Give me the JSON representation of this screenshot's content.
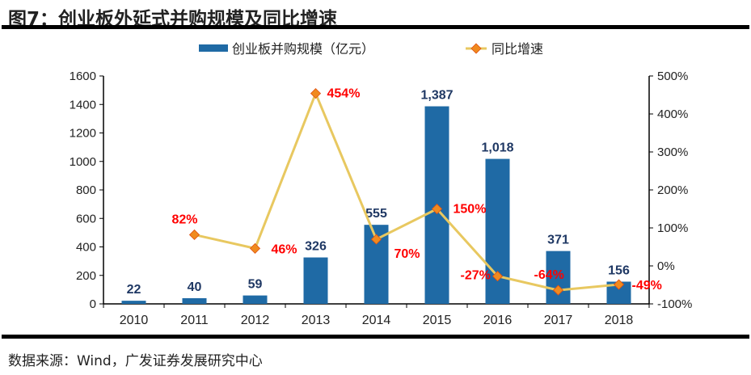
{
  "title": "图7：创业板外延式并购规模及同比增速",
  "source": "数据来源：Wind，广发证券发展研究中心",
  "chart_data": {
    "type": "bar+line",
    "categories": [
      "2010",
      "2011",
      "2012",
      "2013",
      "2014",
      "2015",
      "2016",
      "2017",
      "2018"
    ],
    "series": [
      {
        "name": "创业板并购规模（亿元）",
        "type": "bar",
        "axis": "left",
        "color": "#1F6AA5",
        "values": [
          22,
          40,
          59,
          326,
          555,
          1387,
          1018,
          371,
          156
        ],
        "labels": [
          "22",
          "40",
          "59",
          "326",
          "555",
          "1,387",
          "1,018",
          "371",
          "156"
        ]
      },
      {
        "name": "同比增速",
        "type": "line",
        "axis": "right",
        "color": "#E8C860",
        "marker_color": "#F08A1E",
        "values": [
          null,
          82,
          46,
          454,
          70,
          150,
          -27,
          -64,
          -49
        ],
        "labels": [
          "",
          "82%",
          "46%",
          "454%",
          "70%",
          "150%",
          "-27%",
          "-64%",
          "-49%"
        ]
      }
    ],
    "y_left": {
      "lim": [
        0,
        1600
      ],
      "ticks": [
        "0",
        "200",
        "400",
        "600",
        "800",
        "1000",
        "1200",
        "1400",
        "1600"
      ]
    },
    "y_right": {
      "lim": [
        -100,
        500
      ],
      "ticks": [
        "-100%",
        "0%",
        "100%",
        "200%",
        "300%",
        "400%",
        "500%"
      ]
    },
    "bar_label_color": "#1F3864",
    "line_label_color": "#FF0000",
    "legend": "top",
    "grid": false
  }
}
